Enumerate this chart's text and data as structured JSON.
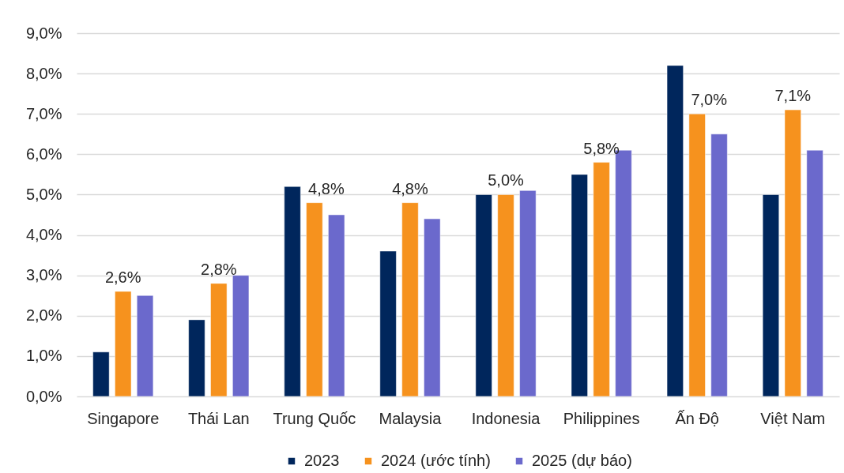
{
  "chart_data": {
    "type": "bar",
    "categories": [
      "Singapore",
      "Thái Lan",
      "Trung Quốc",
      "Malaysia",
      "Indonesia",
      "Philippines",
      "Ấn Độ",
      "Việt Nam"
    ],
    "series": [
      {
        "name": "2023",
        "color": "#00265c",
        "values": [
          1.1,
          1.9,
          5.2,
          3.6,
          5.0,
          5.5,
          8.2,
          5.0
        ]
      },
      {
        "name": "2024 (ước tính)",
        "color": "#f6921e",
        "values": [
          2.6,
          2.8,
          4.8,
          4.8,
          5.0,
          5.8,
          7.0,
          7.1
        ],
        "value_labels": [
          "2,6%",
          "2,8%",
          "4,8%",
          "4,8%",
          "5,0%",
          "5,8%",
          "7,0%",
          "7,1%"
        ]
      },
      {
        "name": "2025 (dự báo)",
        "color": "#6b69cc",
        "values": [
          2.5,
          3.0,
          4.5,
          4.4,
          5.1,
          6.1,
          6.5,
          6.1
        ]
      }
    ],
    "ylim": [
      0,
      9
    ],
    "yticks": [
      {
        "value": 0,
        "label": "0,0%"
      },
      {
        "value": 1,
        "label": "1,0%"
      },
      {
        "value": 2,
        "label": "2,0%"
      },
      {
        "value": 3,
        "label": "3,0%"
      },
      {
        "value": 4,
        "label": "4,0%"
      },
      {
        "value": 5,
        "label": "5,0%"
      },
      {
        "value": 6,
        "label": "6,0%"
      },
      {
        "value": 7,
        "label": "7,0%"
      },
      {
        "value": 8,
        "label": "8,0%"
      },
      {
        "value": 9,
        "label": "9,0%"
      }
    ],
    "grid": "y",
    "legend": "bottom"
  }
}
